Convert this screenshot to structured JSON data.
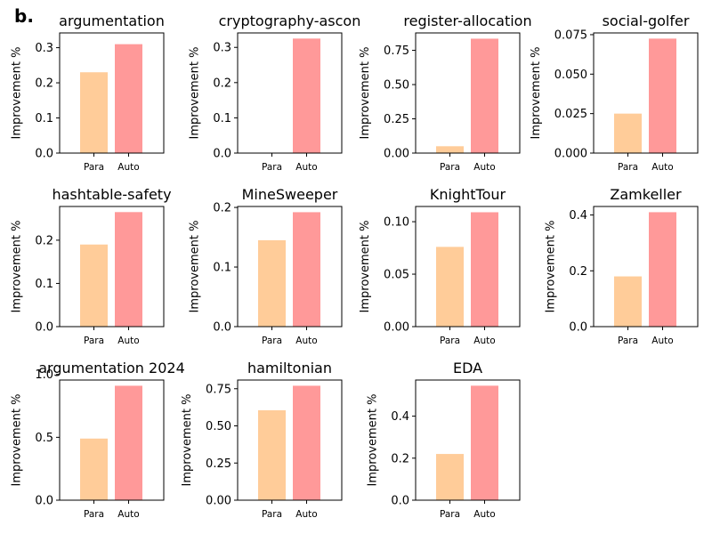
{
  "panel_label": "b.",
  "colors": {
    "para": "#ffcc99",
    "auto": "#ff9999",
    "axis": "#000000"
  },
  "chart_data": [
    {
      "type": "bar",
      "title": "argumentation",
      "categories": [
        "Para",
        "Auto"
      ],
      "values": [
        0.23,
        0.31
      ],
      "ylabel": "Improvement %",
      "ylim": [
        0,
        0.342
      ],
      "yticks": [
        0.0,
        0.1,
        0.2,
        0.3
      ],
      "ytick_labels": [
        "0.0",
        "0.1",
        "0.2",
        "0.3"
      ]
    },
    {
      "type": "bar",
      "title": "cryptography-ascon",
      "categories": [
        "Para",
        "Auto"
      ],
      "values": [
        0.0,
        0.325
      ],
      "ylabel": "Improvement %",
      "ylim": [
        0,
        0.341
      ],
      "yticks": [
        0.0,
        0.1,
        0.2,
        0.3
      ],
      "ytick_labels": [
        "0.0",
        "0.1",
        "0.2",
        "0.3"
      ]
    },
    {
      "type": "bar",
      "title": "register-allocation",
      "categories": [
        "Para",
        "Auto"
      ],
      "values": [
        0.05,
        0.835
      ],
      "ylabel": "Improvement %",
      "ylim": [
        0,
        0.877
      ],
      "yticks": [
        0.0,
        0.25,
        0.5,
        0.75
      ],
      "ytick_labels": [
        "0.00",
        "0.25",
        "0.50",
        "0.75"
      ]
    },
    {
      "type": "bar",
      "title": "social-golfer",
      "categories": [
        "Para",
        "Auto"
      ],
      "values": [
        0.025,
        0.0725
      ],
      "ylabel": "Improvement %",
      "ylim": [
        0,
        0.0761
      ],
      "yticks": [
        0.0,
        0.025,
        0.05,
        0.075
      ],
      "ytick_labels": [
        "0.000",
        "0.025",
        "0.050",
        "0.075"
      ]
    },
    {
      "type": "bar",
      "title": "hashtable-safety",
      "categories": [
        "Para",
        "Auto"
      ],
      "values": [
        0.19,
        0.265
      ],
      "ylabel": "Improvement %",
      "ylim": [
        0,
        0.278
      ],
      "yticks": [
        0.0,
        0.1,
        0.2
      ],
      "ytick_labels": [
        "0.0",
        "0.1",
        "0.2"
      ]
    },
    {
      "type": "bar",
      "title": "MineSweeper",
      "categories": [
        "Para",
        "Auto"
      ],
      "values": [
        0.145,
        0.192
      ],
      "ylabel": "Improvement %",
      "ylim": [
        0,
        0.2016
      ],
      "yticks": [
        0.0,
        0.1,
        0.2
      ],
      "ytick_labels": [
        "0.0",
        "0.1",
        "0.2"
      ]
    },
    {
      "type": "bar",
      "title": "KnightTour",
      "categories": [
        "Para",
        "Auto"
      ],
      "values": [
        0.076,
        0.109
      ],
      "ylabel": "Improvement %",
      "ylim": [
        0,
        0.1145
      ],
      "yticks": [
        0.0,
        0.05,
        0.1
      ],
      "ytick_labels": [
        "0.00",
        "0.05",
        "0.10"
      ]
    },
    {
      "type": "bar",
      "title": "Zamkeller",
      "categories": [
        "Para",
        "Auto"
      ],
      "values": [
        0.18,
        0.41
      ],
      "ylabel": "Improvement %",
      "ylim": [
        0,
        0.4305
      ],
      "yticks": [
        0.0,
        0.2,
        0.4
      ],
      "ytick_labels": [
        "0.0",
        "0.2",
        "0.4"
      ]
    },
    {
      "type": "bar",
      "title": "argumentation 2024",
      "categories": [
        "Para",
        "Auto"
      ],
      "values": [
        0.49,
        0.91
      ],
      "ylabel": "Improvement %",
      "ylim": [
        0,
        0.9555
      ],
      "yticks": [
        0.0,
        0.5,
        1.0
      ],
      "ytick_labels": [
        "0.0",
        "0.5",
        "1.0"
      ]
    },
    {
      "type": "bar",
      "title": "hamiltonian",
      "categories": [
        "Para",
        "Auto"
      ],
      "values": [
        0.605,
        0.77
      ],
      "ylabel": "Improvement %",
      "ylim": [
        0,
        0.8085
      ],
      "yticks": [
        0.0,
        0.25,
        0.5,
        0.75
      ],
      "ytick_labels": [
        "0.00",
        "0.25",
        "0.50",
        "0.75"
      ]
    },
    {
      "type": "bar",
      "title": "EDA",
      "categories": [
        "Para",
        "Auto"
      ],
      "values": [
        0.22,
        0.545
      ],
      "ylabel": "Improvement %",
      "ylim": [
        0,
        0.572
      ],
      "yticks": [
        0.0,
        0.2,
        0.4
      ],
      "ytick_labels": [
        "0.0",
        "0.2",
        "0.4"
      ]
    }
  ]
}
